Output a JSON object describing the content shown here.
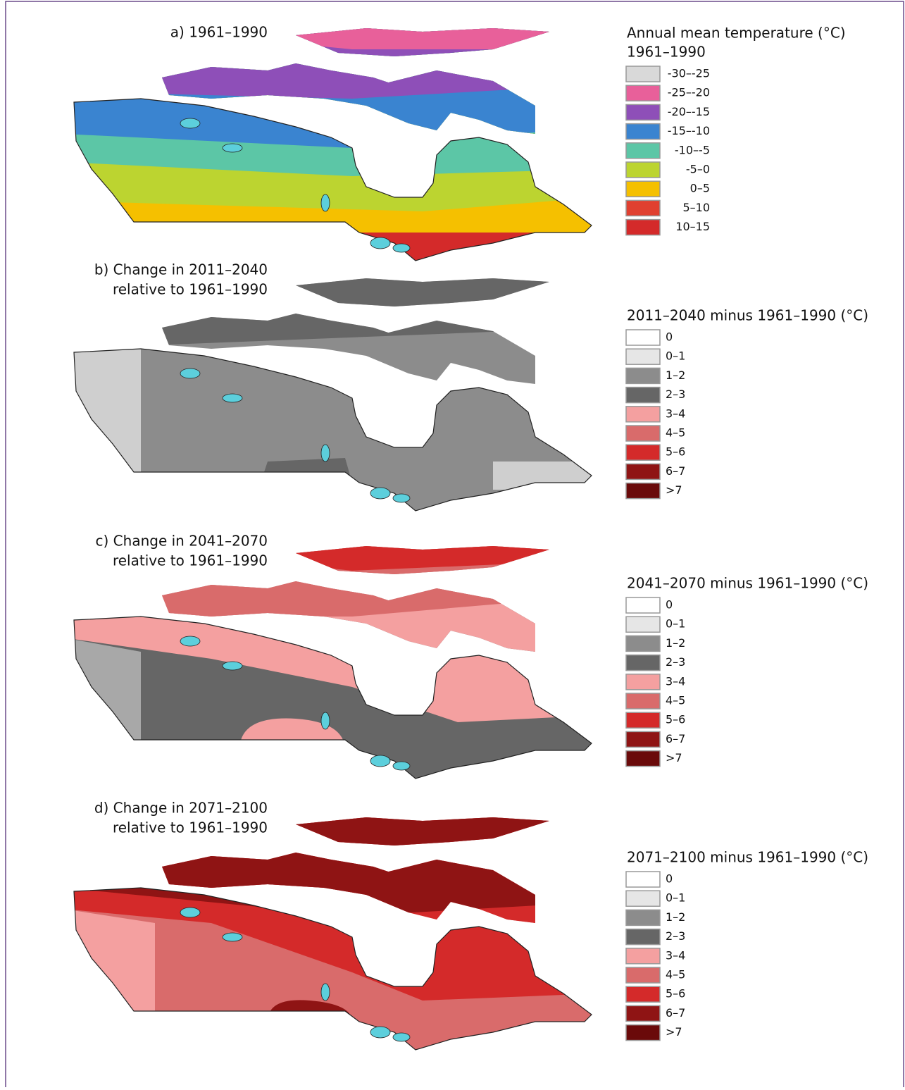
{
  "panels": [
    {
      "title": [
        "a) 1961–1990"
      ],
      "legend_title": [
        "Annual mean temperature (°C)",
        "1961–1990"
      ],
      "legend": [
        {
          "label": "-30–-25",
          "color": "#d9d9d9"
        },
        {
          "label": "-25–-20",
          "color": "#e8609a"
        },
        {
          "label": "-20–-15",
          "color": "#8e4fb8"
        },
        {
          "label": "-15–-10",
          "color": "#3a84d0"
        },
        {
          "label": "-10–-5",
          "color": "#5cc6a6"
        },
        {
          "label": "-5–0",
          "color": "#bcd430"
        },
        {
          "label": "0–5",
          "color": "#f5c000"
        },
        {
          "label": "5–10",
          "color": "#e04030"
        },
        {
          "label": "10–15",
          "color": "#d42a2a"
        }
      ]
    },
    {
      "title": [
        "b) Change in 2011–2040",
        "relative to 1961–1990"
      ],
      "legend_title": [
        "2011–2040 minus 1961–1990 (°C)"
      ],
      "legend": [
        {
          "label": "0",
          "color": "#ffffff"
        },
        {
          "label": "0–1",
          "color": "#e6e6e6"
        },
        {
          "label": "1–2",
          "color": "#8c8c8c"
        },
        {
          "label": "2–3",
          "color": "#666666"
        },
        {
          "label": "3–4",
          "color": "#f4a0a0"
        },
        {
          "label": "4–5",
          "color": "#d96b6b"
        },
        {
          "label": "5–6",
          "color": "#d42a2a"
        },
        {
          "label": "6–7",
          "color": "#8f1414"
        },
        {
          "label": ">7",
          "color": "#6a0a0a"
        }
      ]
    },
    {
      "title": [
        "c) Change in 2041–2070",
        "relative to 1961–1990"
      ],
      "legend_title": [
        "2041–2070 minus 1961–1990 (°C)"
      ],
      "legend": [
        {
          "label": "0",
          "color": "#ffffff"
        },
        {
          "label": "0–1",
          "color": "#e6e6e6"
        },
        {
          "label": "1–2",
          "color": "#8c8c8c"
        },
        {
          "label": "2–3",
          "color": "#666666"
        },
        {
          "label": "3–4",
          "color": "#f4a0a0"
        },
        {
          "label": "4–5",
          "color": "#d96b6b"
        },
        {
          "label": "5–6",
          "color": "#d42a2a"
        },
        {
          "label": "6–7",
          "color": "#8f1414"
        },
        {
          "label": ">7",
          "color": "#6a0a0a"
        }
      ]
    },
    {
      "title": [
        "d) Change in 2071–2100",
        "relative to 1961–1990"
      ],
      "legend_title": [
        "2071–2100 minus 1961–1990 (°C)"
      ],
      "legend": [
        {
          "label": "0",
          "color": "#ffffff"
        },
        {
          "label": "0–1",
          "color": "#e6e6e6"
        },
        {
          "label": "1–2",
          "color": "#8c8c8c"
        },
        {
          "label": "2–3",
          "color": "#666666"
        },
        {
          "label": "3–4",
          "color": "#f4a0a0"
        },
        {
          "label": "4–5",
          "color": "#d96b6b"
        },
        {
          "label": "5–6",
          "color": "#d42a2a"
        },
        {
          "label": "6–7",
          "color": "#8f1414"
        },
        {
          "label": ">7",
          "color": "#6a0a0a"
        }
      ]
    }
  ]
}
